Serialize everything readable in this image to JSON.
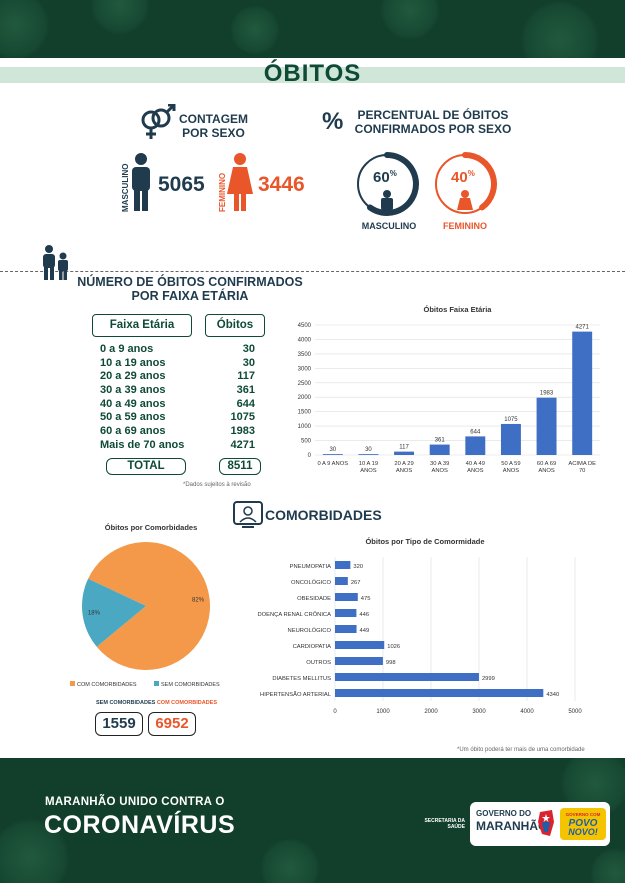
{
  "title": "ÓBITOS",
  "sex_count": {
    "heading": "CONTAGEM POR SEXO",
    "male_label": "MASCULINO",
    "male_value": "5065",
    "female_label": "FEMININO",
    "female_value": "3446"
  },
  "sex_percent": {
    "heading": "PERCENTUAL DE ÓBITOS CONFIRMADOS POR SEXO",
    "symbol": "%",
    "male_pct": "60",
    "female_pct": "40",
    "pct_sign": "%",
    "male_label": "MASCULINO",
    "female_label": "FEMININO"
  },
  "age": {
    "heading": "NÚMERO DE ÓBITOS CONFIRMADOS POR FAIXA ETÁRIA",
    "col_range": "Faixa Etária",
    "col_deaths": "Óbitos",
    "rows": [
      {
        "range": "0 a 9 anos",
        "value": "30"
      },
      {
        "range": "10 a 19 anos",
        "value": "30"
      },
      {
        "range": "20 a 29 anos",
        "value": "117"
      },
      {
        "range": "30 a 39 anos",
        "value": "361"
      },
      {
        "range": "40 a 49 anos",
        "value": "644"
      },
      {
        "range": "50 a 59 anos",
        "value": "1075"
      },
      {
        "range": "60 a 69 anos",
        "value": "1983"
      },
      {
        "range": "Mais de 70 anos",
        "value": "4271"
      }
    ],
    "total_label": "TOTAL",
    "total_value": "8511",
    "note": "*Dados sujeitos à revisão"
  },
  "comorbidities": {
    "heading": "COMORBIDADES",
    "without_label": "SEM COMORBIDADES",
    "with_label": "COM COMORBIDADES",
    "without_value": "1559",
    "with_value": "6952",
    "note": "*Um óbito poderá ter mais de uma comorbidade"
  },
  "footer": {
    "line1": "MARANHÃO UNIDO CONTRA O",
    "line2": "CORONAVÍRUS",
    "secretaria": "SECRETARIA DA SAÚDE",
    "gov1": "GOVERNO DO",
    "gov2": "MARANHÃO",
    "slogan1": "GOVERNO COM",
    "slogan2": "POVO",
    "slogan3": "NOVO!"
  },
  "chart_data": [
    {
      "type": "bar",
      "title": "Óbitos Faixa Etária",
      "categories": [
        "0 A 9 ANOS",
        "10 A 19 ANOS",
        "20 A 29 ANOS",
        "30 A 39 ANOS",
        "40 A 49 ANOS",
        "50 A 59 ANOS",
        "60 A 69 ANOS",
        "ACIMA DE 70"
      ],
      "values": [
        30,
        30,
        117,
        361,
        644,
        1075,
        1983,
        4271
      ],
      "ylim": [
        0,
        4500
      ],
      "yticks": [
        0,
        500,
        1000,
        1500,
        2000,
        2500,
        3000,
        3500,
        4000,
        4500
      ],
      "color": "#3f6fc4"
    },
    {
      "type": "pie",
      "title": "Óbitos por Comorbidades",
      "labels": [
        "COM COMORBIDADES",
        "SEM COMORBIDADES"
      ],
      "values": [
        82,
        18
      ],
      "data_labels": [
        "82%",
        "18%"
      ],
      "colors": [
        "#f4994a",
        "#4aa8c2"
      ],
      "legend": "bottom"
    },
    {
      "type": "bar",
      "orientation": "horizontal",
      "title": "Óbitos por Tipo de Comormidade",
      "categories": [
        "PNEUMOPATIA",
        "ONCOLÓGICO",
        "OBESIDADE",
        "DOENÇA RENAL CRÔNICA",
        "NEUROLÓGICO",
        "CARDIOPATIA",
        "OUTROS",
        "DIABETES MELLITUS",
        "HIPERTENSÃO ARTERIAL"
      ],
      "values": [
        320,
        267,
        475,
        446,
        449,
        1026,
        998,
        2999,
        4340
      ],
      "xlim": [
        0,
        5000
      ],
      "xticks": [
        0,
        1000,
        2000,
        3000,
        4000,
        5000
      ],
      "color": "#3f6fc4"
    }
  ]
}
